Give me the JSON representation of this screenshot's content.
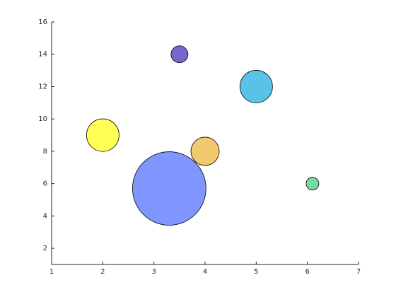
{
  "chart_data": {
    "type": "bubble",
    "x": [
      3.3,
      2,
      4,
      3.5,
      5,
      6.1
    ],
    "values": [
      5.7,
      9,
      8,
      14,
      12,
      6
    ],
    "sizes": [
      2700,
      530,
      400,
      144,
      530,
      81
    ],
    "colors": [
      "#7f96ff",
      "#ffff55",
      "#f2c96e",
      "#7766cc",
      "#5bc2e7",
      "#77d9a0"
    ],
    "xlim": [
      1,
      7
    ],
    "xticks": [
      1,
      2,
      3,
      4,
      5,
      6,
      7
    ],
    "ylim": [
      1,
      16
    ],
    "yticks": [
      2,
      4,
      6,
      8,
      10,
      12,
      14,
      16
    ],
    "grid": false
  }
}
